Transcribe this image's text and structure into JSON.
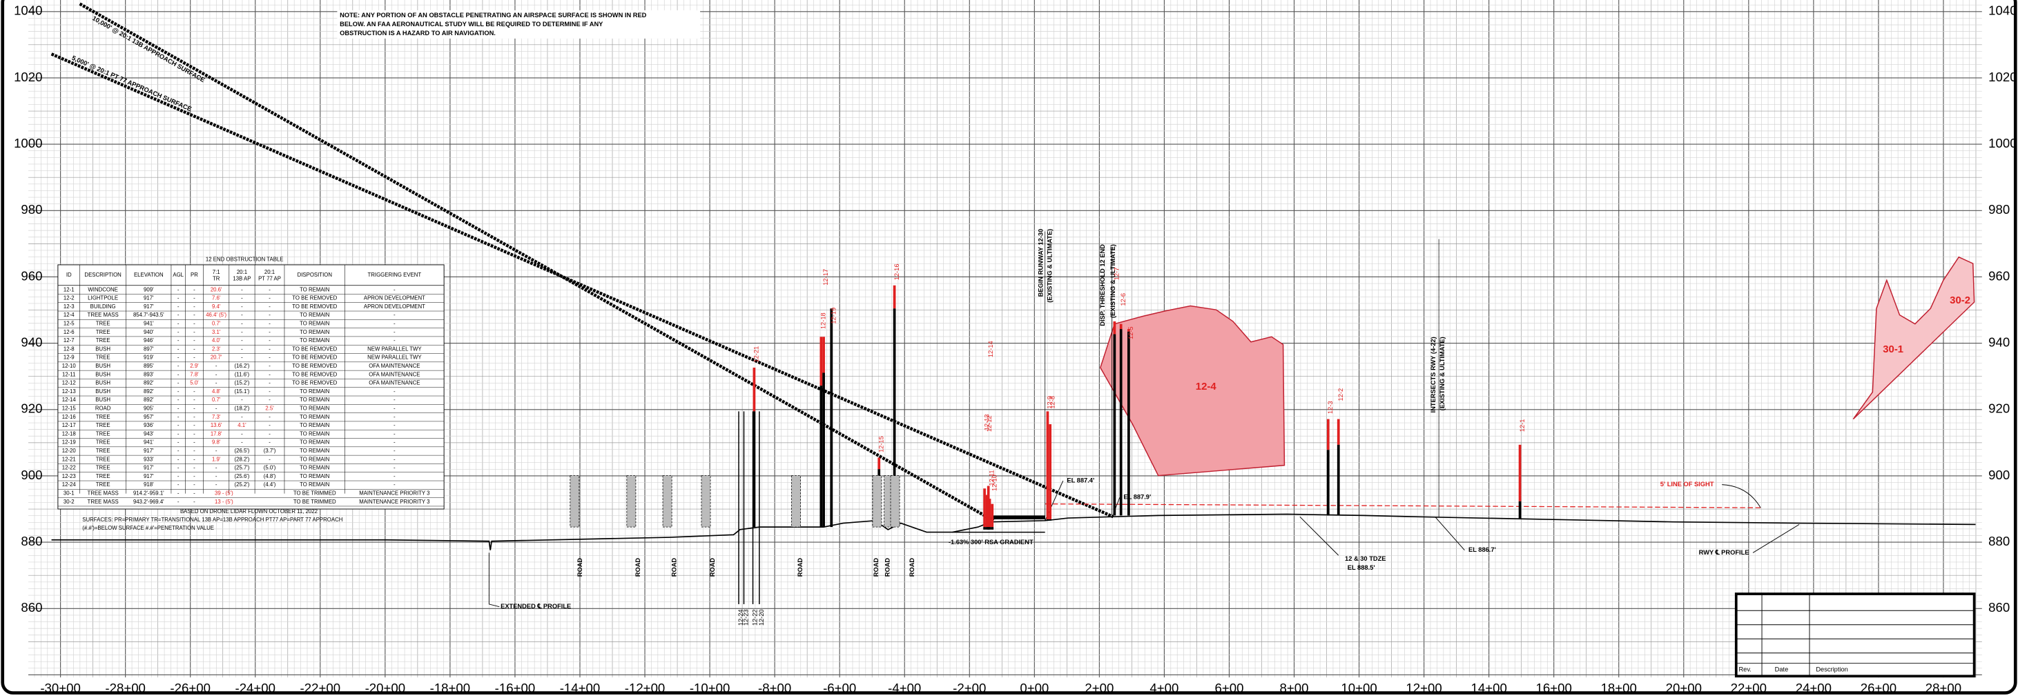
{
  "note": [
    "NOTE: ANY PORTION OF AN OBSTACLE PENETRATING AN AIRSPACE SURFACE IS SHOWN IN RED",
    "BELOW.  AN FAA AERONAUTICAL STUDY WILL BE REQUIRED TO DETERMINE IF ANY",
    "OBSTRUCTION IS A HAZARD TO AIR NAVIGATION."
  ],
  "y_axis": [
    "1040",
    "1020",
    "1000",
    "980",
    "960",
    "940",
    "920",
    "900",
    "880",
    "860"
  ],
  "x_axis": [
    "-30+00",
    "-28+00",
    "-26+00",
    "-24+00",
    "-22+00",
    "-20+00",
    "-18+00",
    "-16+00",
    "-14+00",
    "-12+00",
    "-10+00",
    "-8+00",
    "-6+00",
    "-4+00",
    "-2+00",
    "0+00",
    "2+00",
    "4+00",
    "6+00",
    "8+00",
    "10+00",
    "12+00",
    "14+00",
    "16+00",
    "18+00",
    "20+00",
    "22+00",
    "24+00",
    "26+00",
    "28+00"
  ],
  "surfaces": [
    "10,000' @ 20:1 13B APPROACH SURFACE",
    "5,000' @ 20:1 PT 77 APPROACH SURFACE"
  ],
  "table": {
    "title": "12 END OBSTRUCTION TABLE",
    "header": [
      [
        "ID"
      ],
      [
        "DESCRIPTION"
      ],
      [
        "ELEVATION"
      ],
      [
        "AGL"
      ],
      [
        "PR"
      ],
      [
        "7:1",
        "TR"
      ],
      [
        "20:1",
        "13B AP"
      ],
      [
        "20:1",
        "PT 77 AP"
      ],
      [
        "DISPOSITION"
      ],
      [
        "TRIGGERING EVENT"
      ]
    ],
    "rows": [
      [
        "12-1",
        "WINDCONE",
        "909'",
        "-",
        "-",
        "20.6'",
        "-",
        "-",
        "TO REMAIN",
        "-"
      ],
      [
        "12-2",
        "LIGHTPOLE",
        "917'",
        "-",
        "-",
        "7.6'",
        "-",
        "-",
        "TO BE REMOVED",
        "APRON DEVELOPMENT"
      ],
      [
        "12-3",
        "BUILDING",
        "917'",
        "-",
        "-",
        "9.4'",
        "-",
        "-",
        "TO BE REMOVED",
        "APRON DEVELOPMENT"
      ],
      [
        "12-4",
        "TREE MASS",
        "854.7'-943.5'",
        "-",
        "-",
        "46.4' (5')",
        "-",
        "-",
        "TO REMAIN",
        "-"
      ],
      [
        "12-5",
        "TREE",
        "941'",
        "-",
        "-",
        "0.7'",
        "-",
        "-",
        "TO REMAIN",
        "-"
      ],
      [
        "12-6",
        "TREE",
        "940'",
        "-",
        "-",
        "3.1'",
        "-",
        "-",
        "TO REMAIN",
        "-"
      ],
      [
        "12-7",
        "TREE",
        "946'",
        "-",
        "-",
        "4.0'",
        "-",
        "-",
        "TO REMAIN",
        "-"
      ],
      [
        "12-8",
        "BUSH",
        "897'",
        "-",
        "-",
        "2.3'",
        "-",
        "-",
        "TO BE REMOVED",
        "NEW PARALLEL TWY"
      ],
      [
        "12-9",
        "TREE",
        "919'",
        "-",
        "-",
        "20.7'",
        "-",
        "-",
        "TO BE REMOVED",
        "NEW PARALLEL TWY"
      ],
      [
        "12-10",
        "BUSH",
        "895'",
        "-",
        "2.9'",
        "-",
        "(16.2')",
        "-",
        "TO BE REMOVED",
        "OFA MAINTENANCE"
      ],
      [
        "12-11",
        "BUSH",
        "893'",
        "-",
        "7.8'",
        "-",
        "(11.6')",
        "-",
        "TO BE REMOVED",
        "OFA MAINTENANCE"
      ],
      [
        "12-12",
        "BUSH",
        "892'",
        "-",
        "5.0'",
        "-",
        "(15.2')",
        "-",
        "TO BE REMOVED",
        "OFA MAINTENANCE"
      ],
      [
        "12-13",
        "BUSH",
        "892'",
        "-",
        "-",
        "4.8'",
        "(15.1')",
        "-",
        "TO REMAIN",
        "-"
      ],
      [
        "12-14",
        "BUSH",
        "892'",
        "-",
        "-",
        "0.7'",
        "-",
        "-",
        "TO REMAIN",
        "-"
      ],
      [
        "12-15",
        "ROAD",
        "905'",
        "-",
        "-",
        "-",
        "(18.2')",
        "2.5'",
        "TO REMAIN",
        "-"
      ],
      [
        "12-16",
        "TREE",
        "957'",
        "-",
        "-",
        "7.3'",
        "-",
        "-",
        "TO REMAIN",
        "-"
      ],
      [
        "12-17",
        "TREE",
        "936'",
        "-",
        "-",
        "13.6'",
        "4.1'",
        "-",
        "TO REMAIN",
        "-"
      ],
      [
        "12-18",
        "TREE",
        "943'",
        "-",
        "-",
        "17.8'",
        "-",
        "-",
        "TO REMAIN",
        "-"
      ],
      [
        "12-19",
        "TREE",
        "941'",
        "-",
        "-",
        "9.8'",
        "-",
        "-",
        "TO REMAIN",
        "-"
      ],
      [
        "12-20",
        "TREE",
        "917'",
        "-",
        "-",
        "-",
        "(26.5')",
        "(3.7')",
        "TO REMAIN",
        "-"
      ],
      [
        "12-21",
        "TREE",
        "933'",
        "-",
        "-",
        "1.9'",
        "(28.2')",
        "-",
        "TO REMAIN",
        "-"
      ],
      [
        "12-22",
        "TREE",
        "917'",
        "-",
        "-",
        "-",
        "(25.7')",
        "(5.0')",
        "TO REMAIN",
        "-"
      ],
      [
        "12-23",
        "TREE",
        "917'",
        "-",
        "-",
        "-",
        "(25.6')",
        "(4.8')",
        "TO REMAIN",
        "-"
      ],
      [
        "12-24",
        "TREE",
        "918'",
        "-",
        "-",
        "-",
        "(25.2')",
        "(4.4')",
        "TO REMAIN",
        "-"
      ],
      [
        "30-1",
        "TREE MASS",
        "914.2'-959.1'",
        "-",
        "-",
        "39 - (5')",
        "TO BE TRIMMED",
        "MAINTENANCE PRIORITY 3"
      ],
      [
        "30-2",
        "TREE MASS",
        "943.2'-969.4'",
        "-",
        "-",
        "13 - (5')",
        "TO BE TRIMMED",
        "MAINTENANCE PRIORITY 3"
      ]
    ],
    "notes": [
      "BASED ON DRONE LIDAR FLOWN OCTOBER 11, 2022",
      "SURFACES:  PR=PRIMARY   TR=TRANSITIONAL   13B AP=13B APPROACH   PT77 AP=PART 77 APPROACH",
      "(#.#')=BELOW SURFACE    #.#'=PENETRATION VALUE"
    ]
  },
  "annotations": [
    "BEGIN RUNWAY 12-30",
    "(EXISTING & ULTIMATE)",
    "DISP. THRESHOLD 12 END",
    "(EXISTING & ULTIMATE)",
    "INTERSECTS RWY (4-22)",
    "(EXISTING & ULTIMATE)",
    "EL 887.4'",
    "EL 887.9'",
    "-1.63% 300' RSA GRADIENT",
    "12 & 30 TDZE",
    "EL 888.5'",
    "EL 886.7'",
    "5' LINE OF SIGHT",
    "RWY ℄ PROFILE",
    "EXTENDED ℄ PROFILE",
    "12-4",
    "30-1",
    "30-2"
  ],
  "plot_labels": [
    "12-21",
    "12-18",
    "12-17",
    "12-19",
    "12-16",
    "12-15",
    "12-14",
    "12-13",
    "12-12",
    "12-11",
    "12-10",
    "12-9",
    "12-8",
    "12-7",
    "12-6",
    "12-5",
    "12-3",
    "12-2",
    "12-1",
    "12-24",
    "12-23",
    "12-22",
    "12-20"
  ],
  "roads": [
    "ROAD",
    "ROAD",
    "ROAD",
    "ROAD",
    "ROAD",
    "ROAD",
    "ROAD",
    "ROAD"
  ],
  "title_block": [
    "Rev.",
    "Date",
    "Description"
  ]
}
